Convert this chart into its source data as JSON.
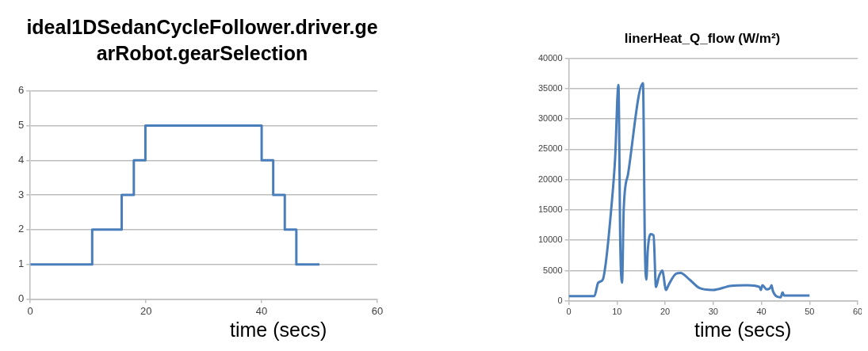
{
  "chart_data": [
    {
      "type": "step",
      "title": "ideal1DSedanCycleFollower.driver.gearRobot.gearSelection",
      "xlabel": "time (secs)",
      "xlim": [
        0,
        60
      ],
      "xticks": [
        0,
        20,
        40,
        60
      ],
      "ylim": [
        0,
        6
      ],
      "yticks": [
        0,
        1,
        2,
        3,
        4,
        5,
        6
      ],
      "grid": "y",
      "legend": false,
      "series": [
        {
          "color": "#4a7ebb",
          "x": [
            0,
            10.7,
            15.8,
            17.9,
            19.9,
            40,
            42,
            44,
            46,
            50
          ],
          "values": [
            1,
            2,
            3,
            4,
            5,
            4,
            3,
            2,
            1,
            1
          ]
        }
      ]
    },
    {
      "type": "line",
      "title": "linerHeat_Q_flow (W/m²)",
      "xlabel": "time (secs)",
      "xlim": [
        0,
        60
      ],
      "xticks": [
        0,
        10,
        20,
        30,
        40,
        50,
        60
      ],
      "ylim": [
        0,
        40000
      ],
      "yticks": [
        0,
        5000,
        10000,
        15000,
        20000,
        25000,
        30000,
        35000,
        40000
      ],
      "grid": "y",
      "legend": false,
      "series": [
        {
          "color": "#4a7ebb",
          "x": [
            0,
            5.3,
            6.1,
            7.05,
            7.7,
            8.8,
            9.6,
            10.3,
            10.7,
            11.06,
            11.4,
            12.3,
            15.4,
            15.8,
            16.1,
            16.4,
            17.0,
            17.6,
            18.1,
            18.7,
            19.4,
            20.2,
            20.7,
            22.3,
            23.2,
            25.1,
            27.2,
            29.9,
            33.7,
            37.0,
            39.6,
            39.9,
            40.2,
            41.1,
            41.9,
            42.1,
            42.4,
            44.0,
            44.4,
            44.7,
            50
          ],
          "values": [
            800,
            800,
            3000,
            3500,
            6400,
            15100,
            23300,
            35600,
            8800,
            3000,
            15100,
            20900,
            35900,
            8800,
            3500,
            8400,
            11000,
            10800,
            2300,
            4000,
            5000,
            1800,
            2600,
            4500,
            4600,
            3500,
            2100,
            1800,
            2500,
            2600,
            2300,
            1800,
            2600,
            1900,
            2200,
            2600,
            1600,
            600,
            1400,
            900,
            900
          ]
        }
      ]
    }
  ]
}
